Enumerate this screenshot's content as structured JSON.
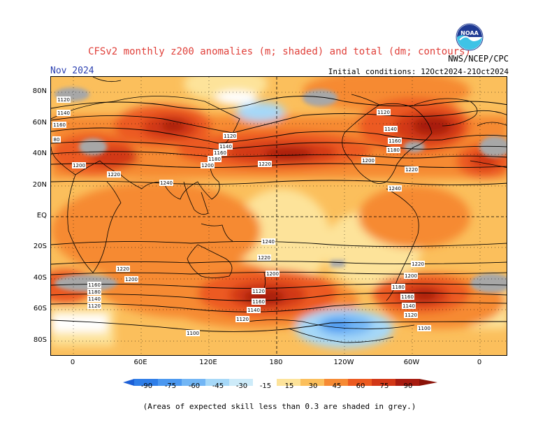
{
  "header": {
    "title": "CFSv2 monthly z200 anomalies (m; shaded) and total (dm; contours)",
    "month": "Nov 2024",
    "agency": "NWS/NCEP/CPC",
    "initial_conditions": "Initial conditions: 12Oct2024-21Oct2024",
    "logo_text": "NOAA"
  },
  "map": {
    "lat_labels": [
      "80N",
      "60N",
      "40N",
      "20N",
      "EQ",
      "20S",
      "40S",
      "60S",
      "80S"
    ],
    "lon_labels": [
      "0",
      "60E",
      "120E",
      "180",
      "120W",
      "60W",
      "0"
    ],
    "contour_labels": {
      "1100": "1100",
      "1120": "1120",
      "1140": "1140",
      "1160": "1160",
      "1180": "1180",
      "1200": "1200",
      "1220": "1220",
      "1240": "1240",
      "80": "80"
    }
  },
  "colorbar": {
    "labels": [
      "-90",
      "-75",
      "-60",
      "-45",
      "-30",
      "-15",
      "15",
      "30",
      "45",
      "60",
      "75",
      "90"
    ],
    "colors": [
      "#1c5fd6",
      "#2f7ee8",
      "#4b98f0",
      "#72b6f5",
      "#a6d8f8",
      "#cdebf9",
      "#ffffff",
      "#fde39a",
      "#fbbf5c",
      "#f68a33",
      "#ec5a20",
      "#d23717",
      "#a71b10"
    ],
    "grey": "#a7a7a7"
  },
  "footnote": "(Areas of expected skill less than 0.3 are shaded in grey.)"
}
